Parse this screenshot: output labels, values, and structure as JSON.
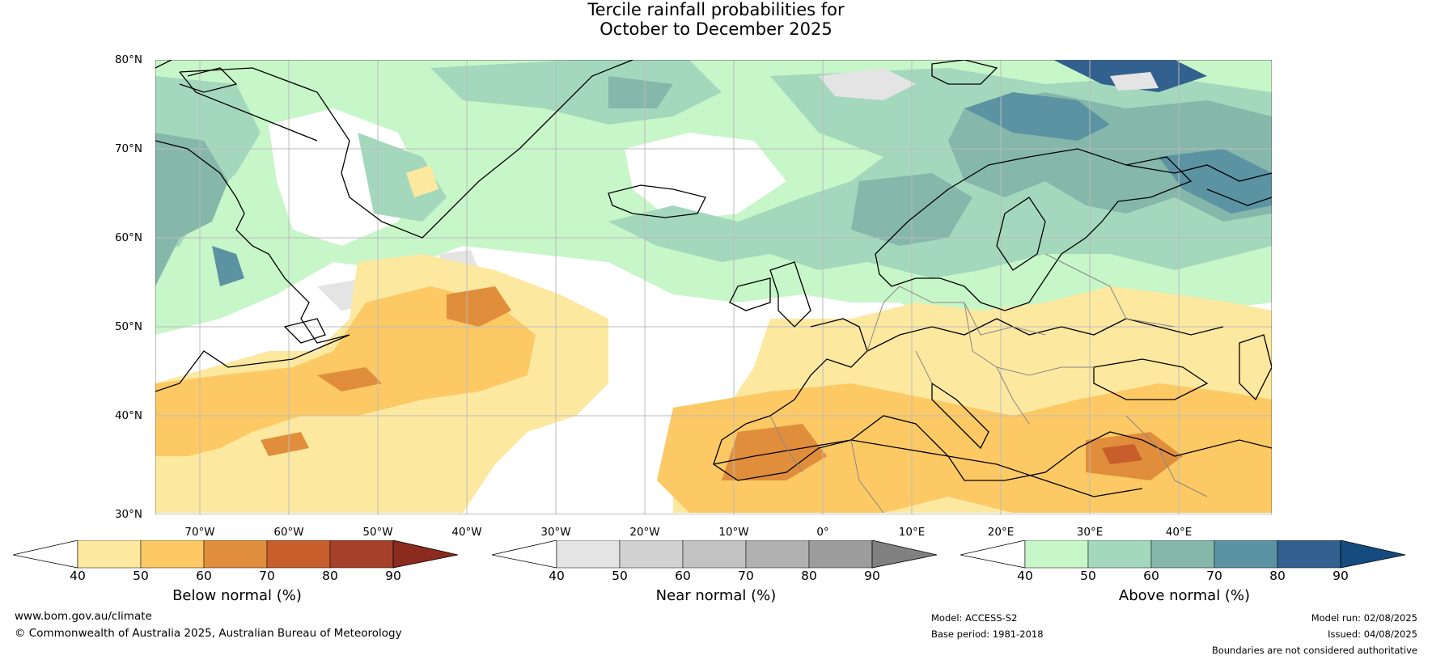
{
  "title": {
    "line1": "Tercile rainfall probabilities for",
    "line2": "October to December 2025"
  },
  "map": {
    "lat_labels": [
      "80°N",
      "70°N",
      "60°N",
      "50°N",
      "40°N",
      "30°N"
    ],
    "lon_labels": [
      "70°W",
      "60°W",
      "50°W",
      "40°W",
      "30°W",
      "20°W",
      "10°W",
      "0°",
      "10°E",
      "20°E",
      "30°E",
      "40°E"
    ],
    "colors": {
      "ocean_land": "#ffffff",
      "coast": "#000000",
      "borders": "#888888",
      "grid": "#bbbbbb"
    }
  },
  "colorbars": [
    {
      "label": "Below normal (%)",
      "ticks": [
        "40",
        "50",
        "60",
        "70",
        "80",
        "90"
      ],
      "colors": [
        "#ffffff",
        "#fde8a0",
        "#fcc964",
        "#e08e3c",
        "#c75e2c",
        "#a5412a",
        "#8b2a1e"
      ]
    },
    {
      "label": "Near normal (%)",
      "ticks": [
        "40",
        "50",
        "60",
        "70",
        "80",
        "90"
      ],
      "colors": [
        "#ffffff",
        "#e4e4e4",
        "#d2d2d2",
        "#c2c2c2",
        "#b0b0b0",
        "#9c9c9c",
        "#808080"
      ]
    },
    {
      "label": "Above normal (%)",
      "ticks": [
        "40",
        "50",
        "60",
        "70",
        "80",
        "90"
      ],
      "colors": [
        "#ffffff",
        "#c7f6c8",
        "#a4d8bd",
        "#86b7ab",
        "#5b93a3",
        "#33618f",
        "#164b80"
      ]
    }
  ],
  "footer": {
    "website": "www.bom.gov.au/climate",
    "copyright": "© Commonwealth of Australia 2025, Australian Bureau of Meteorology",
    "model": "Model: ACCESS-S2",
    "base_period": "Base period: 1981-2018",
    "model_run": "Model run: 02/08/2025",
    "issued": "Issued: 04/08/2025",
    "disclaimer": "Boundaries are not considered authoritative"
  }
}
